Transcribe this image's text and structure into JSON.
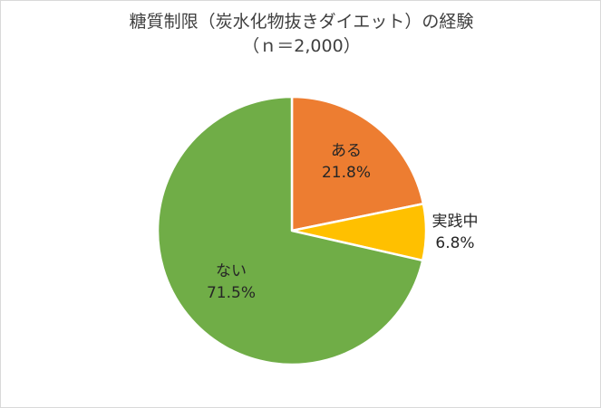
{
  "chart_data": {
    "type": "pie",
    "title": "糖質制限（炭水化物抜きダイエット）の経験",
    "subtitle": "（ｎ＝2,000）",
    "start_angle_deg": 0,
    "direction": "clockwise",
    "slices": [
      {
        "label": "ある",
        "value": 21.8,
        "value_label": "21.8%",
        "color": "#ED7D31"
      },
      {
        "label": "実践中",
        "value": 6.8,
        "value_label": "6.8%",
        "color": "#FFC000"
      },
      {
        "label": "ない",
        "value": 71.5,
        "value_label": "71.5%",
        "color": "#70AD47"
      }
    ]
  }
}
